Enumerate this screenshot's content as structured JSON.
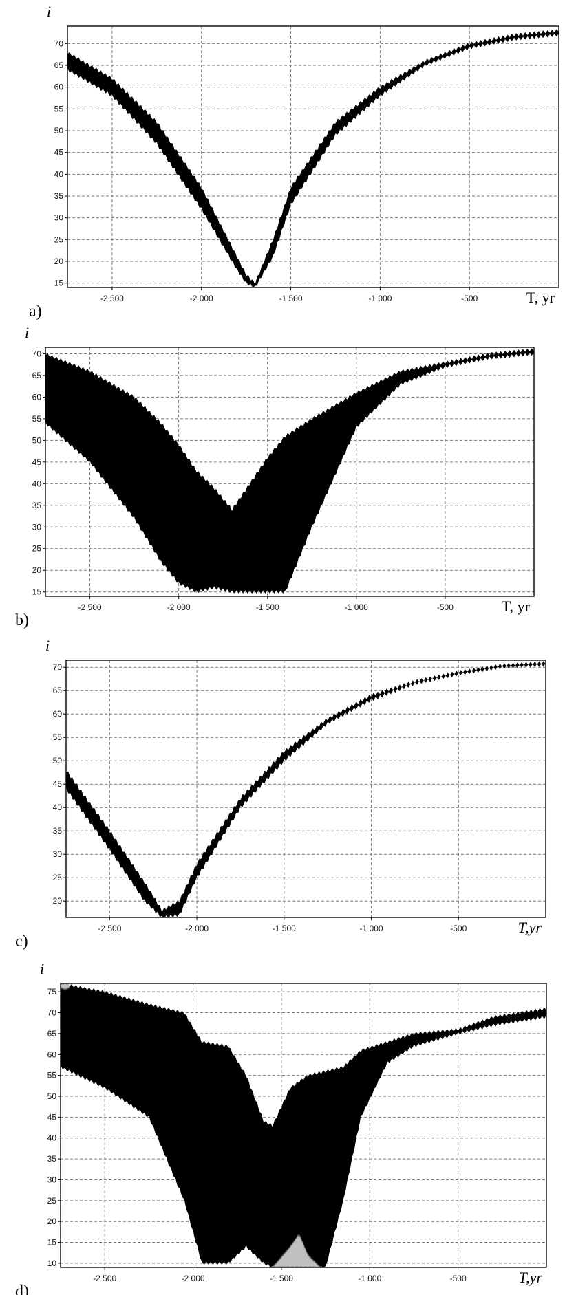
{
  "chart_data": [
    {
      "panel": "a)",
      "type": "area",
      "ylabel": "i",
      "xlabel": "T, yr",
      "xlabel_style": "upright",
      "xlim": [
        -2750,
        0
      ],
      "ylim": [
        14,
        74
      ],
      "xticks": [
        -2500,
        -2000,
        -1500,
        -1000,
        -500
      ],
      "xtick_labels": [
        "-2 500",
        "-2 000",
        "-1 500",
        "-1 000",
        "-500"
      ],
      "yticks": [
        15,
        20,
        25,
        30,
        35,
        40,
        45,
        50,
        55,
        60,
        65,
        70
      ],
      "grid": true,
      "series": [
        {
          "fill": "black",
          "x": [
            -2750,
            -2500,
            -2250,
            -2000,
            -1900,
            -1800,
            -1750,
            -1700,
            -1600,
            -1500,
            -1250,
            -1000,
            -750,
            -500,
            -250,
            0
          ],
          "upper": [
            68,
            62,
            52,
            37,
            29,
            21,
            17,
            15,
            25,
            37,
            52,
            60,
            66,
            70,
            72,
            73
          ],
          "lower": [
            64,
            58,
            47,
            32,
            25,
            18,
            15,
            14,
            21,
            33,
            49,
            58,
            65,
            69,
            71,
            72
          ]
        }
      ]
    },
    {
      "panel": "b)",
      "type": "area",
      "ylabel": "i",
      "xlabel": "T, yr",
      "xlabel_style": "upright",
      "xlim": [
        -2750,
        0
      ],
      "ylim": [
        14,
        71.5
      ],
      "xticks": [
        -2500,
        -2000,
        -1500,
        -1000,
        -500
      ],
      "xtick_labels": [
        "-2 500",
        "-2 000",
        "-1 500",
        "-1 000",
        "-500"
      ],
      "yticks": [
        15,
        20,
        25,
        30,
        35,
        40,
        45,
        50,
        55,
        60,
        65,
        70
      ],
      "grid": true,
      "series": [
        {
          "fill": "black",
          "x": [
            -2750,
            -2500,
            -2250,
            -2100,
            -2000,
            -1900,
            -1800,
            -1700,
            -1600,
            -1500,
            -1400,
            -1250,
            -1000,
            -750,
            -500,
            -250,
            0
          ],
          "upper": [
            70,
            66,
            60,
            54,
            49,
            43,
            39,
            34,
            40,
            46,
            51,
            55,
            61,
            66,
            68,
            70,
            71
          ],
          "lower": [
            54,
            45,
            32,
            22,
            17,
            15,
            16,
            15,
            15,
            15,
            15,
            30,
            53,
            63,
            67,
            69,
            70
          ]
        }
      ]
    },
    {
      "panel": "c)",
      "type": "area",
      "ylabel": "i",
      "xlabel": "T,yr",
      "xlabel_style": "italic",
      "xlim": [
        -2750,
        0
      ],
      "ylim": [
        16.5,
        71.5
      ],
      "xticks": [
        -2500,
        -2000,
        -1500,
        -1000,
        -500
      ],
      "xtick_labels": [
        "-2 500",
        "-2 000",
        "-1 500",
        "-1 000",
        "-500"
      ],
      "yticks": [
        20,
        25,
        30,
        35,
        40,
        45,
        50,
        55,
        60,
        65,
        70
      ],
      "grid": true,
      "series": [
        {
          "fill": "black",
          "x": [
            -2750,
            -2500,
            -2300,
            -2200,
            -2100,
            -2000,
            -1750,
            -1500,
            -1250,
            -1000,
            -750,
            -500,
            -250,
            0
          ],
          "upper": [
            48,
            35,
            24,
            18,
            20,
            28,
            42,
            52,
            59,
            64,
            67,
            69,
            70.5,
            71
          ],
          "lower": [
            44,
            31,
            20,
            16.5,
            17,
            25,
            40,
            50,
            58,
            63,
            66.5,
            68.5,
            70,
            70.5
          ]
        }
      ]
    },
    {
      "panel": "d)",
      "type": "area",
      "ylabel": "i",
      "xlabel": "T,yr",
      "xlabel_style": "italic",
      "xlim": [
        -2750,
        0
      ],
      "ylim": [
        9,
        77
      ],
      "xticks": [
        -2500,
        -2000,
        -1500,
        -1000,
        -500
      ],
      "xtick_labels": [
        "-2 500",
        "-2 000",
        "-1 500",
        "-1 000",
        "-500"
      ],
      "yticks": [
        10,
        15,
        20,
        25,
        30,
        35,
        40,
        45,
        50,
        55,
        60,
        65,
        70,
        75
      ],
      "grid": true,
      "series": [
        {
          "fill": "black",
          "x": [
            -2750,
            -2500,
            -2250,
            -2050,
            -1950,
            -1800,
            -1700,
            -1600,
            -1550,
            -1450,
            -1350,
            -1250,
            -1150,
            -1050,
            -900,
            -750,
            -500,
            -300,
            -150,
            0
          ],
          "upper": [
            77,
            75,
            72,
            70,
            63,
            62,
            55,
            44,
            43,
            52,
            55,
            56,
            57,
            61,
            63,
            65,
            66,
            69,
            70,
            71
          ],
          "lower": [
            57,
            52,
            45,
            25,
            10,
            10,
            14,
            10,
            9,
            9,
            9,
            9,
            25,
            45,
            58,
            62,
            65,
            67,
            68,
            69
          ]
        },
        {
          "fill": "gray",
          "x": [
            -1550,
            -1450,
            -1400,
            -1350,
            -1280
          ],
          "upper": [
            9,
            14,
            17,
            12,
            9
          ],
          "lower": [
            9,
            9,
            9,
            9,
            9
          ]
        },
        {
          "fill": "gray",
          "x": [
            -2750,
            -2725,
            -2700
          ],
          "upper": [
            77,
            77,
            77
          ],
          "lower": [
            76,
            75.5,
            76
          ]
        }
      ]
    }
  ]
}
